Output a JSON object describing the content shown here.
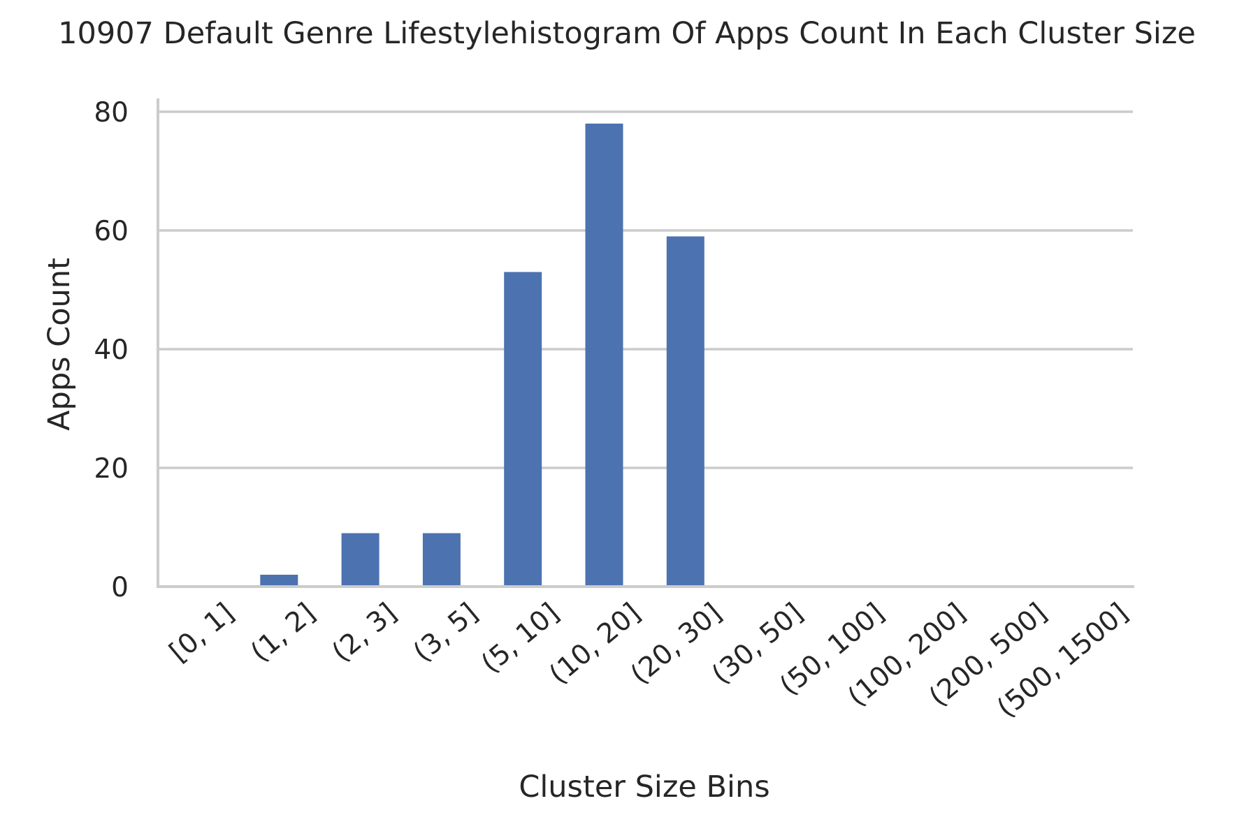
{
  "chart_data": {
    "type": "bar",
    "title": "10907 Default Genre Lifestylehistogram Of Apps Count In Each Cluster Size",
    "xlabel": "Cluster Size Bins",
    "ylabel": "Apps Count",
    "categories": [
      "[0, 1]",
      "(1, 2]",
      "(2, 3]",
      "(3, 5]",
      "(5, 10]",
      "(10, 20]",
      "(20, 30]",
      "(30, 50]",
      "(50, 100]",
      "(100, 200]",
      "(200, 500]",
      "(500, 1500]"
    ],
    "values": [
      0,
      2,
      9,
      9,
      53,
      78,
      59,
      0,
      0,
      0,
      0,
      0
    ],
    "ylim": [
      0,
      82
    ],
    "yticks": [
      0,
      20,
      40,
      60,
      80
    ],
    "grid": "horizontal",
    "bar_color": "#4c72b0",
    "grid_color": "#cccccc"
  }
}
